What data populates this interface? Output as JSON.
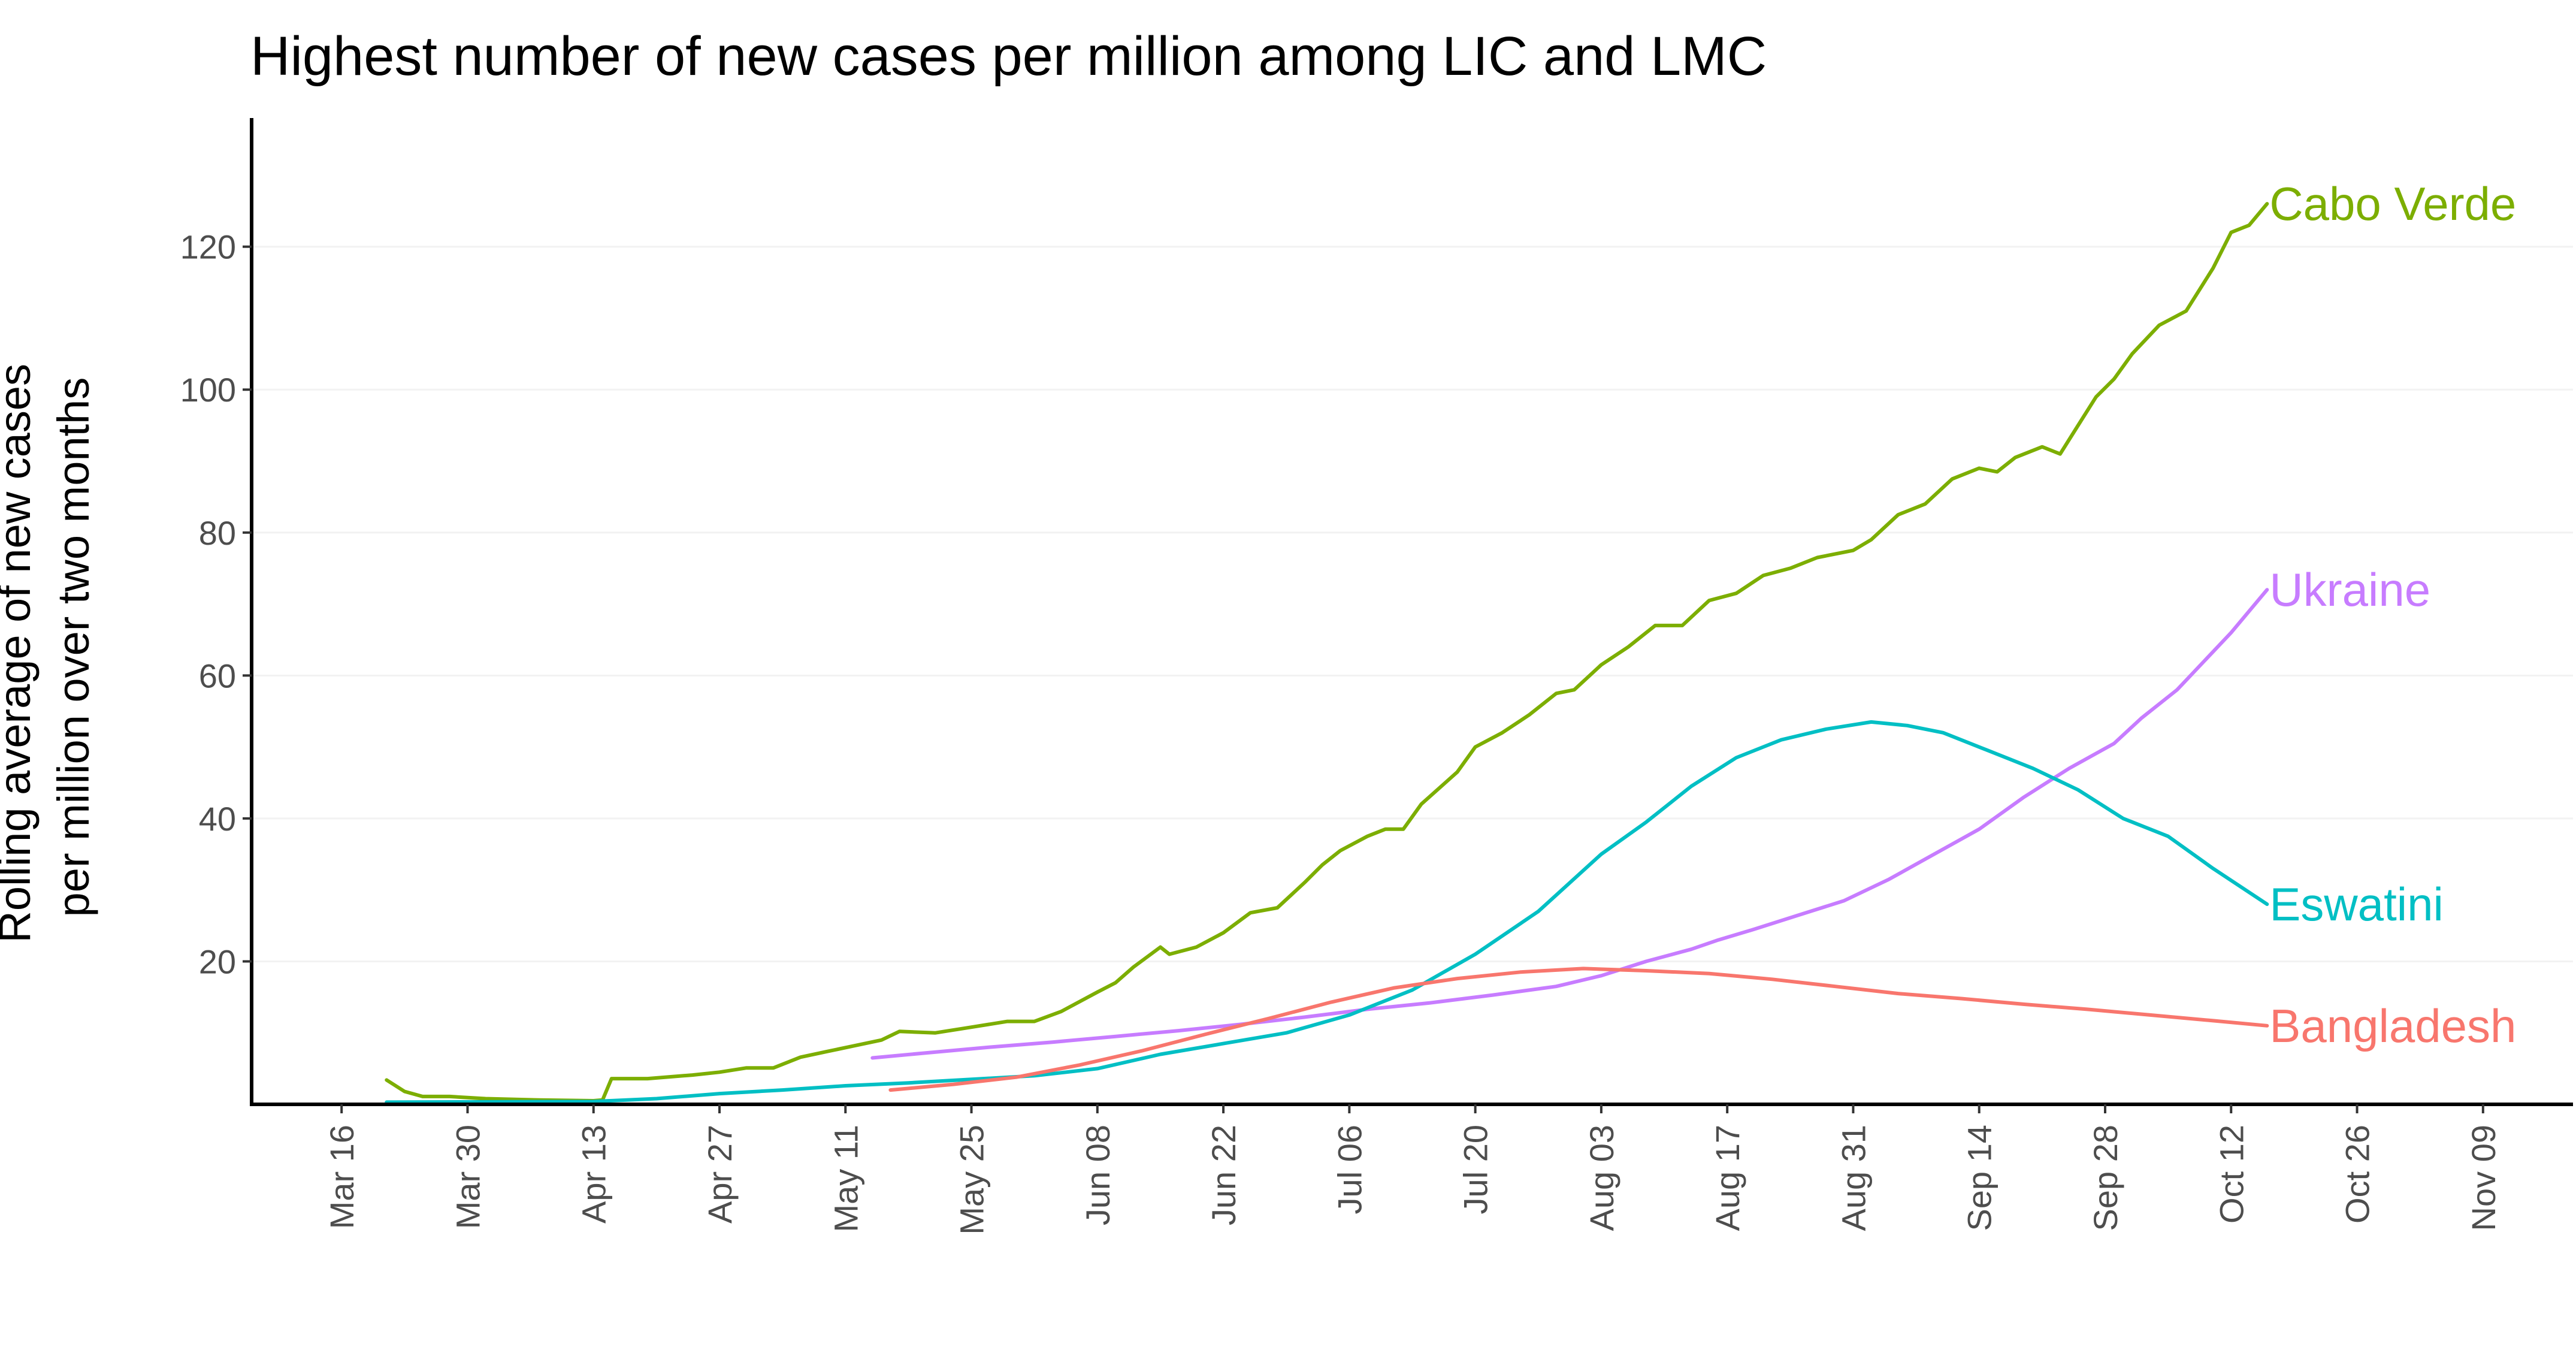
{
  "chart_data": {
    "type": "line",
    "title": "Highest number of new cases per million among LIC and LMC",
    "xlabel": "",
    "ylabel_lines": [
      "Rolling average of new cases",
      "per million over two months"
    ],
    "x_axis": {
      "unit": "date",
      "min": "2020-03-06",
      "max": "2020-11-19",
      "ticks": [
        "Mar 16",
        "Mar 30",
        "Apr 13",
        "Apr 27",
        "May 11",
        "May 25",
        "Jun 08",
        "Jun 22",
        "Jul 06",
        "Jul 20",
        "Aug 03",
        "Aug 17",
        "Aug 31",
        "Sep 14",
        "Sep 28",
        "Oct 12",
        "Oct 26",
        "Nov 09"
      ],
      "tick_dates": [
        "2020-03-16",
        "2020-03-30",
        "2020-04-13",
        "2020-04-27",
        "2020-05-11",
        "2020-05-25",
        "2020-06-08",
        "2020-06-22",
        "2020-07-06",
        "2020-07-20",
        "2020-08-03",
        "2020-08-17",
        "2020-08-31",
        "2020-09-14",
        "2020-09-28",
        "2020-10-12",
        "2020-10-26",
        "2020-11-09"
      ]
    },
    "y_axis": {
      "min": 0,
      "max": 138,
      "ticks": [
        20,
        40,
        60,
        80,
        100,
        120
      ]
    },
    "grid": "horizontal-faint",
    "legend": "direct labels at line ends",
    "series": [
      {
        "name": "Cabo Verde",
        "color": "#7CAE00",
        "points": [
          [
            "2020-03-21",
            3.4
          ],
          [
            "2020-03-23",
            1.8
          ],
          [
            "2020-03-25",
            1.1
          ],
          [
            "2020-03-28",
            1.1
          ],
          [
            "2020-04-01",
            0.8
          ],
          [
            "2020-04-07",
            0.6
          ],
          [
            "2020-04-13",
            0.5
          ],
          [
            "2020-04-14",
            0.6
          ],
          [
            "2020-04-15",
            3.6
          ],
          [
            "2020-04-19",
            3.6
          ],
          [
            "2020-04-24",
            4.1
          ],
          [
            "2020-04-27",
            4.5
          ],
          [
            "2020-04-30",
            5.1
          ],
          [
            "2020-05-03",
            5.1
          ],
          [
            "2020-05-06",
            6.6
          ],
          [
            "2020-05-09",
            7.4
          ],
          [
            "2020-05-12",
            8.2
          ],
          [
            "2020-05-15",
            9.0
          ],
          [
            "2020-05-17",
            10.2
          ],
          [
            "2020-05-21",
            10.0
          ],
          [
            "2020-05-25",
            10.8
          ],
          [
            "2020-05-29",
            11.6
          ],
          [
            "2020-06-01",
            11.6
          ],
          [
            "2020-06-04",
            13.0
          ],
          [
            "2020-06-08",
            15.7
          ],
          [
            "2020-06-10",
            17.0
          ],
          [
            "2020-06-12",
            19.2
          ],
          [
            "2020-06-15",
            22.0
          ],
          [
            "2020-06-16",
            21.0
          ],
          [
            "2020-06-19",
            22.0
          ],
          [
            "2020-06-22",
            24.0
          ],
          [
            "2020-06-25",
            26.8
          ],
          [
            "2020-06-28",
            27.5
          ],
          [
            "2020-07-01",
            31.0
          ],
          [
            "2020-07-03",
            33.5
          ],
          [
            "2020-07-05",
            35.5
          ],
          [
            "2020-07-08",
            37.5
          ],
          [
            "2020-07-10",
            38.5
          ],
          [
            "2020-07-12",
            38.5
          ],
          [
            "2020-07-14",
            42.0
          ],
          [
            "2020-07-18",
            46.5
          ],
          [
            "2020-07-20",
            50.0
          ],
          [
            "2020-07-23",
            52.0
          ],
          [
            "2020-07-26",
            54.5
          ],
          [
            "2020-07-29",
            57.5
          ],
          [
            "2020-07-31",
            58.0
          ],
          [
            "2020-08-03",
            61.5
          ],
          [
            "2020-08-06",
            64.0
          ],
          [
            "2020-08-09",
            67.0
          ],
          [
            "2020-08-12",
            67.0
          ],
          [
            "2020-08-15",
            70.5
          ],
          [
            "2020-08-18",
            71.5
          ],
          [
            "2020-08-21",
            74.0
          ],
          [
            "2020-08-24",
            75.0
          ],
          [
            "2020-08-27",
            76.5
          ],
          [
            "2020-08-31",
            77.5
          ],
          [
            "2020-09-02",
            79.0
          ],
          [
            "2020-09-05",
            82.5
          ],
          [
            "2020-09-08",
            84.0
          ],
          [
            "2020-09-11",
            87.5
          ],
          [
            "2020-09-14",
            89.0
          ],
          [
            "2020-09-16",
            88.5
          ],
          [
            "2020-09-18",
            90.5
          ],
          [
            "2020-09-21",
            92.0
          ],
          [
            "2020-09-23",
            91.0
          ],
          [
            "2020-09-25",
            95.0
          ],
          [
            "2020-09-27",
            99.0
          ],
          [
            "2020-09-29",
            101.5
          ],
          [
            "2020-10-01",
            105.0
          ],
          [
            "2020-10-04",
            109.0
          ],
          [
            "2020-10-07",
            111.0
          ],
          [
            "2020-10-10",
            117.0
          ],
          [
            "2020-10-12",
            122.0
          ],
          [
            "2020-10-14",
            123.0
          ],
          [
            "2020-10-16",
            126.0
          ]
        ]
      },
      {
        "name": "Ukraine",
        "color": "#C77CFF",
        "points": [
          [
            "2020-05-14",
            6.5
          ],
          [
            "2020-05-20",
            7.2
          ],
          [
            "2020-05-27",
            8.0
          ],
          [
            "2020-06-03",
            8.7
          ],
          [
            "2020-06-10",
            9.5
          ],
          [
            "2020-06-17",
            10.3
          ],
          [
            "2020-06-24",
            11.2
          ],
          [
            "2020-07-01",
            12.2
          ],
          [
            "2020-07-08",
            13.3
          ],
          [
            "2020-07-15",
            14.2
          ],
          [
            "2020-07-22",
            15.3
          ],
          [
            "2020-07-29",
            16.5
          ],
          [
            "2020-08-03",
            18.0
          ],
          [
            "2020-08-08",
            20.0
          ],
          [
            "2020-08-13",
            21.7
          ],
          [
            "2020-08-16",
            23.0
          ],
          [
            "2020-08-20",
            24.5
          ],
          [
            "2020-08-25",
            26.5
          ],
          [
            "2020-08-30",
            28.5
          ],
          [
            "2020-09-04",
            31.5
          ],
          [
            "2020-09-09",
            35.0
          ],
          [
            "2020-09-14",
            38.5
          ],
          [
            "2020-09-19",
            43.0
          ],
          [
            "2020-09-24",
            47.0
          ],
          [
            "2020-09-29",
            50.5
          ],
          [
            "2020-10-02",
            54.0
          ],
          [
            "2020-10-06",
            58.0
          ],
          [
            "2020-10-09",
            62.0
          ],
          [
            "2020-10-12",
            66.0
          ],
          [
            "2020-10-16",
            72.0
          ]
        ]
      },
      {
        "name": "Eswatini",
        "color": "#00BFC4",
        "points": [
          [
            "2020-03-21",
            0.3
          ],
          [
            "2020-04-13",
            0.4
          ],
          [
            "2020-04-20",
            0.8
          ],
          [
            "2020-04-27",
            1.5
          ],
          [
            "2020-05-04",
            2.0
          ],
          [
            "2020-05-11",
            2.6
          ],
          [
            "2020-05-18",
            3.0
          ],
          [
            "2020-05-25",
            3.5
          ],
          [
            "2020-06-01",
            4.0
          ],
          [
            "2020-06-08",
            5.0
          ],
          [
            "2020-06-15",
            7.0
          ],
          [
            "2020-06-22",
            8.5
          ],
          [
            "2020-06-29",
            10.0
          ],
          [
            "2020-07-06",
            12.5
          ],
          [
            "2020-07-13",
            16.0
          ],
          [
            "2020-07-20",
            21.0
          ],
          [
            "2020-07-27",
            27.0
          ],
          [
            "2020-08-03",
            35.0
          ],
          [
            "2020-08-08",
            39.5
          ],
          [
            "2020-08-13",
            44.5
          ],
          [
            "2020-08-18",
            48.5
          ],
          [
            "2020-08-23",
            51.0
          ],
          [
            "2020-08-28",
            52.5
          ],
          [
            "2020-09-02",
            53.5
          ],
          [
            "2020-09-06",
            53.0
          ],
          [
            "2020-09-10",
            52.0
          ],
          [
            "2020-09-15",
            49.5
          ],
          [
            "2020-09-20",
            47.0
          ],
          [
            "2020-09-25",
            44.0
          ],
          [
            "2020-09-30",
            40.0
          ],
          [
            "2020-10-05",
            37.5
          ],
          [
            "2020-10-10",
            33.0
          ],
          [
            "2020-10-16",
            28.0
          ]
        ]
      },
      {
        "name": "Bangladesh",
        "color": "#F8766D",
        "points": [
          [
            "2020-05-16",
            2.0
          ],
          [
            "2020-05-23",
            2.8
          ],
          [
            "2020-05-30",
            3.8
          ],
          [
            "2020-06-06",
            5.5
          ],
          [
            "2020-06-13",
            7.5
          ],
          [
            "2020-06-20",
            9.8
          ],
          [
            "2020-06-27",
            12.0
          ],
          [
            "2020-07-04",
            14.3
          ],
          [
            "2020-07-11",
            16.3
          ],
          [
            "2020-07-18",
            17.6
          ],
          [
            "2020-07-25",
            18.5
          ],
          [
            "2020-08-01",
            19.0
          ],
          [
            "2020-08-08",
            18.7
          ],
          [
            "2020-08-15",
            18.3
          ],
          [
            "2020-08-22",
            17.5
          ],
          [
            "2020-08-29",
            16.5
          ],
          [
            "2020-09-05",
            15.5
          ],
          [
            "2020-09-12",
            14.8
          ],
          [
            "2020-09-19",
            14.0
          ],
          [
            "2020-09-26",
            13.3
          ],
          [
            "2020-10-03",
            12.5
          ],
          [
            "2020-10-10",
            11.7
          ],
          [
            "2020-10-16",
            11.0
          ]
        ]
      }
    ]
  }
}
